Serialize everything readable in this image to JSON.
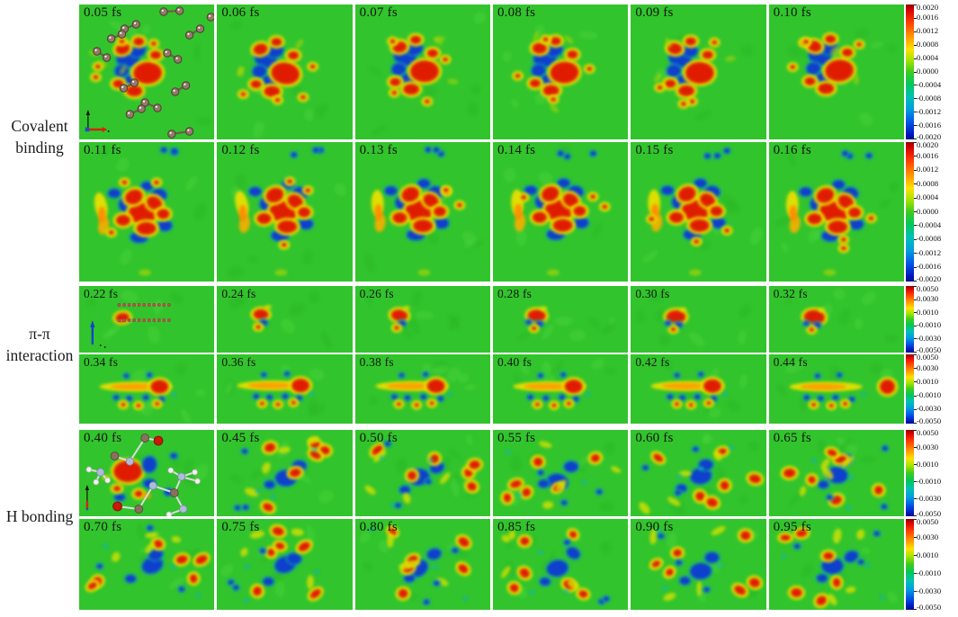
{
  "figure": {
    "sections": [
      {
        "id": "covalent-binding",
        "label": "Covalent binding",
        "rows": [
          {
            "pattern": "cluster",
            "timestamps": [
              "0.05 fs",
              "0.06 fs",
              "0.07 fs",
              "0.08 fs",
              "0.09 fs",
              "0.10 fs"
            ],
            "overlay": "molecule-dumbbells-and-axis",
            "colorbar_ticks": [
              "0.0020",
              "0.0016",
              "0.0012",
              "0.0008",
              "0.0004",
              "0.0000",
              "-0.0004",
              "-0.0008",
              "-0.0012",
              "-0.0016",
              "-0.0020"
            ]
          },
          {
            "pattern": "ring",
            "timestamps": [
              "0.11 fs",
              "0.12 fs",
              "0.13 fs",
              "0.14 fs",
              "0.15 fs",
              "0.16 fs"
            ],
            "overlay": "none",
            "colorbar_ticks": [
              "0.0020",
              "0.0016",
              "0.0012",
              "0.0008",
              "0.0004",
              "0.0000",
              "-0.0004",
              "-0.0008",
              "-0.0012",
              "-0.0016",
              "-0.0020"
            ]
          }
        ]
      },
      {
        "id": "pi-pi-interaction",
        "label": "π-π interaction",
        "rows": [
          {
            "pattern": "smallcluster",
            "timestamps": [
              "0.22 fs",
              "0.24 fs",
              "0.26 fs",
              "0.28 fs",
              "0.30 fs",
              "0.32 fs"
            ],
            "overlay": "molecule-chains-and-axis",
            "colorbar_ticks": [
              "0.0050",
              "0.0030",
              "0.0010",
              "-0.0010",
              "-0.0030",
              "-0.0050"
            ]
          },
          {
            "pattern": "streak",
            "timestamps": [
              "0.34 fs",
              "0.36 fs",
              "0.38 fs",
              "0.40 fs",
              "0.42 fs",
              "0.44 fs"
            ],
            "overlay": "none",
            "colorbar_ticks": [
              "0.0050",
              "0.0030",
              "0.0010",
              "-0.0010",
              "-0.0030",
              "-0.0050"
            ]
          }
        ]
      },
      {
        "id": "h-bonding",
        "label": "H bonding",
        "rows": [
          {
            "pattern": "scatter",
            "timestamps": [
              "0.40 fs",
              "0.45 fs",
              "0.50 fs",
              "0.55 fs",
              "0.60 fs",
              "0.65 fs"
            ],
            "overlay": "molecule-ballstick-and-axis",
            "colorbar_ticks": [
              "0.0050",
              "0.0030",
              "0.0010",
              "-0.0010",
              "-0.0030",
              "-0.0050"
            ]
          },
          {
            "pattern": "scatter",
            "timestamps": [
              "0.70 fs",
              "0.75 fs",
              "0.80 fs",
              "0.85 fs",
              "0.90 fs",
              "0.95 fs"
            ],
            "overlay": "none",
            "colorbar_ticks": [
              "0.0050",
              "0.0030",
              "0.0010",
              "-0.0010",
              "-0.0030",
              "-0.0050"
            ]
          }
        ]
      }
    ],
    "colors": {
      "panel_background": "#32c42c",
      "positive_red": "#e01e00",
      "negative_blue": "#1141cc",
      "halo_yellow": "#e8e000",
      "label_text": "#1a1a1a"
    }
  },
  "chart_data": {
    "type": "heatmap",
    "colormap": "jet",
    "time_unit": "fs",
    "legend_position": "right",
    "grid": false,
    "sections": [
      {
        "label": "Covalent binding",
        "frames_fs": [
          0.05,
          0.06,
          0.07,
          0.08,
          0.09,
          0.1,
          0.11,
          0.12,
          0.13,
          0.14,
          0.15,
          0.16
        ],
        "colorbar_range": [
          -0.002,
          0.002
        ],
        "colorbar_ticks": [
          0.002,
          0.0016,
          0.0012,
          0.0008,
          0.0004,
          0.0,
          -0.0004,
          -0.0008,
          -0.0012,
          -0.0016,
          -0.002
        ]
      },
      {
        "label": "π-π interaction",
        "frames_fs": [
          0.22,
          0.24,
          0.26,
          0.28,
          0.3,
          0.32,
          0.34,
          0.36,
          0.38,
          0.4,
          0.42,
          0.44
        ],
        "colorbar_range": [
          -0.005,
          0.005
        ],
        "colorbar_ticks": [
          0.005,
          0.003,
          0.001,
          -0.001,
          -0.003,
          -0.005
        ]
      },
      {
        "label": "H bonding",
        "frames_fs": [
          0.4,
          0.45,
          0.5,
          0.55,
          0.6,
          0.65,
          0.7,
          0.75,
          0.8,
          0.85,
          0.9,
          0.95
        ],
        "colorbar_range": [
          -0.005,
          0.005
        ],
        "colorbar_ticks": [
          0.005,
          0.003,
          0.001,
          -0.001,
          -0.003,
          -0.005
        ]
      }
    ]
  }
}
